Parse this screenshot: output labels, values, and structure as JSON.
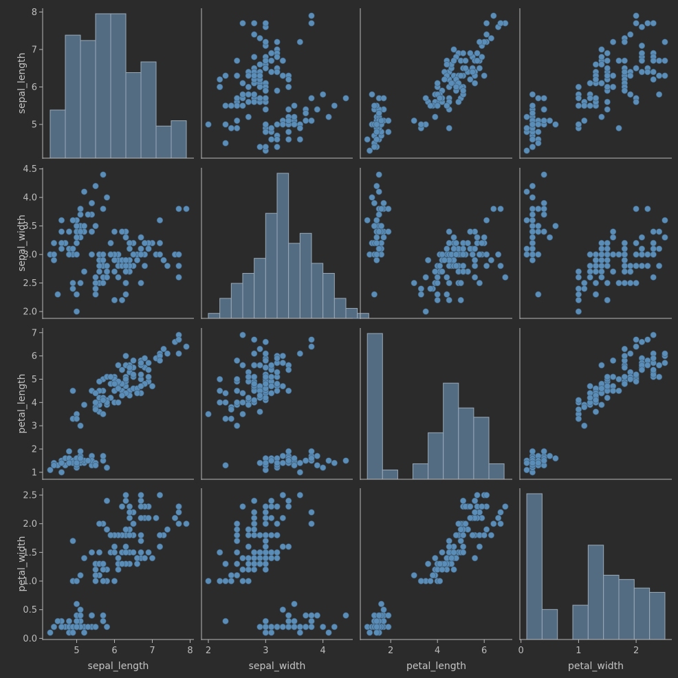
{
  "chart_data": {
    "type": "scatter",
    "variables": [
      "sepal_length",
      "sepal_width",
      "petal_length",
      "petal_width"
    ],
    "axis_labels": [
      "sepal_length",
      "sepal_width",
      "petal_length",
      "petal_width"
    ],
    "colors": {
      "background": "#2b2b2b",
      "point": "#5a8db8",
      "bar": "#536c82",
      "axis": "#b8b8b8",
      "text": "#bdbdbd"
    },
    "ranges": {
      "sepal_length": [
        4.1,
        8.1
      ],
      "sepal_width": [
        1.88,
        4.52
      ],
      "petal_length": [
        0.7,
        7.2
      ],
      "petal_width": [
        -0.02,
        2.62
      ]
    },
    "ticks": {
      "sepal_length": [
        5,
        6,
        7,
        8
      ],
      "sepal_width": [
        2.0,
        2.5,
        3.0,
        3.5,
        4.0,
        4.5
      ],
      "petal_length": [
        1,
        2,
        3,
        4,
        5,
        6,
        7
      ],
      "petal_width": [
        0.0,
        0.5,
        1.0,
        1.5,
        2.0,
        2.5
      ]
    },
    "tick_labels": {
      "sepal_length": [
        "5",
        "6",
        "7",
        "8"
      ],
      "sepal_width": [
        "2.0",
        "2.5",
        "3.0",
        "3.5",
        "4.0",
        "4.5"
      ],
      "petal_length": [
        "1",
        "2",
        "3",
        "4",
        "5",
        "6",
        "7"
      ],
      "petal_width": [
        "0.0",
        "0.5",
        "1.0",
        "1.5",
        "2.0",
        "2.5"
      ]
    },
    "x_ticks": {
      "sepal_length": [
        5,
        6,
        7,
        8
      ],
      "sepal_width": [
        2,
        3,
        4
      ],
      "petal_length": [
        2,
        4,
        6
      ],
      "petal_width": [
        0,
        1,
        2
      ]
    },
    "x_tick_labels": {
      "sepal_length": [
        "5",
        "6",
        "7",
        "8"
      ],
      "sepal_width": [
        "2",
        "3",
        "4"
      ],
      "petal_length": [
        "2",
        "4",
        "6"
      ],
      "petal_width": [
        "0",
        "1",
        "2"
      ]
    },
    "histograms": {
      "sepal_length": {
        "bin_start": 4.3,
        "bin_width": 0.4,
        "counts": [
          9,
          23,
          22,
          27,
          27,
          16,
          18,
          6,
          7
        ]
      },
      "sepal_width": {
        "bin_start": 2.0,
        "bin_width": 0.2,
        "counts": [
          1,
          4,
          7,
          9,
          12,
          21,
          29,
          15,
          17,
          11,
          9,
          4,
          2,
          1
        ]
      },
      "petal_length": {
        "bin_start": 1.0,
        "bin_width": 0.65,
        "counts": [
          47,
          3,
          0,
          5,
          15,
          31,
          23,
          20,
          5
        ]
      },
      "petal_width": {
        "bin_start": 0.1,
        "bin_width": 0.2667,
        "counts": [
          34,
          7,
          0,
          8,
          22,
          15,
          14,
          12,
          11
        ]
      }
    },
    "points": [
      [
        5.1,
        3.5,
        1.4,
        0.2
      ],
      [
        4.9,
        3.0,
        1.4,
        0.2
      ],
      [
        4.7,
        3.2,
        1.3,
        0.2
      ],
      [
        4.6,
        3.1,
        1.5,
        0.2
      ],
      [
        5.0,
        3.6,
        1.4,
        0.2
      ],
      [
        5.4,
        3.9,
        1.7,
        0.4
      ],
      [
        4.6,
        3.4,
        1.4,
        0.3
      ],
      [
        5.0,
        3.4,
        1.5,
        0.2
      ],
      [
        4.4,
        2.9,
        1.4,
        0.2
      ],
      [
        4.9,
        3.1,
        1.5,
        0.1
      ],
      [
        5.4,
        3.7,
        1.5,
        0.2
      ],
      [
        4.8,
        3.4,
        1.6,
        0.2
      ],
      [
        4.8,
        3.0,
        1.4,
        0.1
      ],
      [
        4.3,
        3.0,
        1.1,
        0.1
      ],
      [
        5.8,
        4.0,
        1.2,
        0.2
      ],
      [
        5.7,
        4.4,
        1.5,
        0.4
      ],
      [
        5.4,
        3.9,
        1.3,
        0.4
      ],
      [
        5.1,
        3.5,
        1.4,
        0.3
      ],
      [
        5.7,
        3.8,
        1.7,
        0.3
      ],
      [
        5.1,
        3.8,
        1.5,
        0.3
      ],
      [
        5.4,
        3.4,
        1.7,
        0.2
      ],
      [
        5.1,
        3.7,
        1.5,
        0.4
      ],
      [
        4.6,
        3.6,
        1.0,
        0.2
      ],
      [
        5.1,
        3.3,
        1.7,
        0.5
      ],
      [
        4.8,
        3.4,
        1.9,
        0.2
      ],
      [
        5.0,
        3.0,
        1.6,
        0.2
      ],
      [
        5.0,
        3.4,
        1.6,
        0.4
      ],
      [
        5.2,
        3.5,
        1.5,
        0.2
      ],
      [
        5.2,
        3.4,
        1.4,
        0.2
      ],
      [
        4.7,
        3.2,
        1.6,
        0.2
      ],
      [
        4.8,
        3.1,
        1.6,
        0.2
      ],
      [
        5.4,
        3.4,
        1.5,
        0.4
      ],
      [
        5.2,
        4.1,
        1.5,
        0.1
      ],
      [
        5.5,
        4.2,
        1.4,
        0.2
      ],
      [
        4.9,
        3.1,
        1.5,
        0.2
      ],
      [
        5.0,
        3.2,
        1.2,
        0.2
      ],
      [
        5.5,
        3.5,
        1.3,
        0.2
      ],
      [
        4.9,
        3.6,
        1.4,
        0.1
      ],
      [
        4.4,
        3.0,
        1.3,
        0.2
      ],
      [
        5.1,
        3.4,
        1.5,
        0.2
      ],
      [
        5.0,
        3.5,
        1.3,
        0.3
      ],
      [
        4.5,
        2.3,
        1.3,
        0.3
      ],
      [
        4.4,
        3.2,
        1.3,
        0.2
      ],
      [
        5.0,
        3.5,
        1.6,
        0.6
      ],
      [
        5.1,
        3.8,
        1.9,
        0.4
      ],
      [
        4.8,
        3.0,
        1.4,
        0.3
      ],
      [
        5.1,
        3.8,
        1.6,
        0.2
      ],
      [
        4.6,
        3.2,
        1.4,
        0.2
      ],
      [
        5.3,
        3.7,
        1.5,
        0.2
      ],
      [
        5.0,
        3.3,
        1.4,
        0.2
      ],
      [
        7.0,
        3.2,
        4.7,
        1.4
      ],
      [
        6.4,
        3.2,
        4.5,
        1.5
      ],
      [
        6.9,
        3.1,
        4.9,
        1.5
      ],
      [
        5.5,
        2.3,
        4.0,
        1.3
      ],
      [
        6.5,
        2.8,
        4.6,
        1.5
      ],
      [
        5.7,
        2.8,
        4.5,
        1.3
      ],
      [
        6.3,
        3.3,
        4.7,
        1.6
      ],
      [
        4.9,
        2.4,
        3.3,
        1.0
      ],
      [
        6.6,
        2.9,
        4.6,
        1.3
      ],
      [
        5.2,
        2.7,
        3.9,
        1.4
      ],
      [
        5.0,
        2.0,
        3.5,
        1.0
      ],
      [
        5.9,
        3.0,
        4.2,
        1.5
      ],
      [
        6.0,
        2.2,
        4.0,
        1.0
      ],
      [
        6.1,
        2.9,
        4.7,
        1.4
      ],
      [
        5.6,
        2.9,
        3.6,
        1.3
      ],
      [
        6.7,
        3.1,
        4.4,
        1.4
      ],
      [
        5.6,
        3.0,
        4.5,
        1.5
      ],
      [
        5.8,
        2.7,
        4.1,
        1.0
      ],
      [
        6.2,
        2.2,
        4.5,
        1.5
      ],
      [
        5.6,
        2.5,
        3.9,
        1.1
      ],
      [
        5.9,
        3.2,
        4.8,
        1.8
      ],
      [
        6.1,
        2.8,
        4.0,
        1.3
      ],
      [
        6.3,
        2.5,
        4.9,
        1.5
      ],
      [
        6.1,
        2.8,
        4.7,
        1.2
      ],
      [
        6.4,
        2.9,
        4.3,
        1.3
      ],
      [
        6.6,
        3.0,
        4.4,
        1.4
      ],
      [
        6.8,
        2.8,
        4.8,
        1.4
      ],
      [
        6.7,
        3.0,
        5.0,
        1.7
      ],
      [
        6.0,
        2.9,
        4.5,
        1.5
      ],
      [
        5.7,
        2.6,
        3.5,
        1.0
      ],
      [
        5.5,
        2.4,
        3.8,
        1.1
      ],
      [
        5.5,
        2.4,
        3.7,
        1.0
      ],
      [
        5.8,
        2.7,
        3.9,
        1.2
      ],
      [
        6.0,
        2.7,
        5.1,
        1.6
      ],
      [
        5.4,
        3.0,
        4.5,
        1.5
      ],
      [
        6.0,
        3.4,
        4.5,
        1.6
      ],
      [
        6.7,
        3.1,
        4.7,
        1.5
      ],
      [
        6.3,
        2.3,
        4.4,
        1.3
      ],
      [
        5.6,
        3.0,
        4.1,
        1.3
      ],
      [
        5.5,
        2.5,
        4.0,
        1.3
      ],
      [
        5.5,
        2.6,
        4.4,
        1.2
      ],
      [
        6.1,
        3.0,
        4.6,
        1.4
      ],
      [
        5.8,
        2.6,
        4.0,
        1.2
      ],
      [
        5.0,
        2.3,
        3.3,
        1.0
      ],
      [
        5.6,
        2.7,
        4.2,
        1.3
      ],
      [
        5.7,
        3.0,
        4.2,
        1.2
      ],
      [
        5.7,
        2.9,
        4.2,
        1.3
      ],
      [
        6.2,
        2.9,
        4.3,
        1.3
      ],
      [
        5.1,
        2.5,
        3.0,
        1.1
      ],
      [
        5.7,
        2.8,
        4.1,
        1.3
      ],
      [
        6.3,
        3.3,
        6.0,
        2.5
      ],
      [
        5.8,
        2.7,
        5.1,
        1.9
      ],
      [
        7.1,
        3.0,
        5.9,
        2.1
      ],
      [
        6.3,
        2.9,
        5.6,
        1.8
      ],
      [
        6.5,
        3.0,
        5.8,
        2.2
      ],
      [
        7.6,
        3.0,
        6.6,
        2.1
      ],
      [
        4.9,
        2.5,
        4.5,
        1.7
      ],
      [
        7.3,
        2.9,
        6.3,
        1.8
      ],
      [
        6.7,
        2.5,
        5.8,
        1.8
      ],
      [
        7.2,
        3.6,
        6.1,
        2.5
      ],
      [
        6.5,
        3.2,
        5.1,
        2.0
      ],
      [
        6.4,
        2.7,
        5.3,
        1.9
      ],
      [
        6.8,
        3.0,
        5.5,
        2.1
      ],
      [
        5.7,
        2.5,
        5.0,
        2.0
      ],
      [
        5.8,
        2.8,
        5.1,
        2.4
      ],
      [
        6.4,
        3.2,
        5.3,
        2.3
      ],
      [
        6.5,
        3.0,
        5.5,
        1.8
      ],
      [
        7.7,
        3.8,
        6.7,
        2.2
      ],
      [
        7.7,
        2.6,
        6.9,
        2.3
      ],
      [
        6.0,
        2.2,
        5.0,
        1.5
      ],
      [
        6.9,
        3.2,
        5.7,
        2.3
      ],
      [
        5.6,
        2.8,
        4.9,
        2.0
      ],
      [
        7.7,
        2.8,
        6.7,
        2.0
      ],
      [
        6.3,
        2.7,
        4.9,
        1.8
      ],
      [
        6.7,
        3.3,
        5.7,
        2.1
      ],
      [
        7.2,
        3.2,
        6.0,
        1.8
      ],
      [
        6.2,
        2.8,
        4.8,
        1.8
      ],
      [
        6.1,
        3.0,
        4.9,
        1.8
      ],
      [
        6.4,
        2.8,
        5.6,
        2.1
      ],
      [
        7.2,
        3.0,
        5.8,
        1.6
      ],
      [
        7.4,
        2.8,
        6.1,
        1.9
      ],
      [
        7.9,
        3.8,
        6.4,
        2.0
      ],
      [
        6.4,
        2.8,
        5.6,
        2.2
      ],
      [
        6.3,
        2.8,
        5.1,
        1.5
      ],
      [
        6.1,
        2.6,
        5.6,
        1.4
      ],
      [
        7.7,
        3.0,
        6.1,
        2.3
      ],
      [
        6.3,
        3.4,
        5.6,
        2.4
      ],
      [
        6.4,
        3.1,
        5.5,
        1.8
      ],
      [
        6.0,
        3.0,
        4.8,
        1.8
      ],
      [
        6.9,
        3.1,
        5.4,
        2.1
      ],
      [
        6.7,
        3.1,
        5.6,
        2.4
      ],
      [
        6.9,
        3.1,
        5.1,
        2.3
      ],
      [
        5.8,
        2.7,
        5.1,
        1.9
      ],
      [
        6.8,
        3.2,
        5.9,
        2.3
      ],
      [
        6.7,
        3.3,
        5.7,
        2.5
      ],
      [
        6.7,
        3.0,
        5.2,
        2.3
      ],
      [
        6.3,
        2.5,
        5.0,
        1.9
      ],
      [
        6.5,
        3.0,
        5.2,
        2.0
      ],
      [
        6.2,
        3.4,
        5.4,
        2.3
      ],
      [
        5.9,
        3.0,
        5.1,
        1.8
      ]
    ]
  }
}
